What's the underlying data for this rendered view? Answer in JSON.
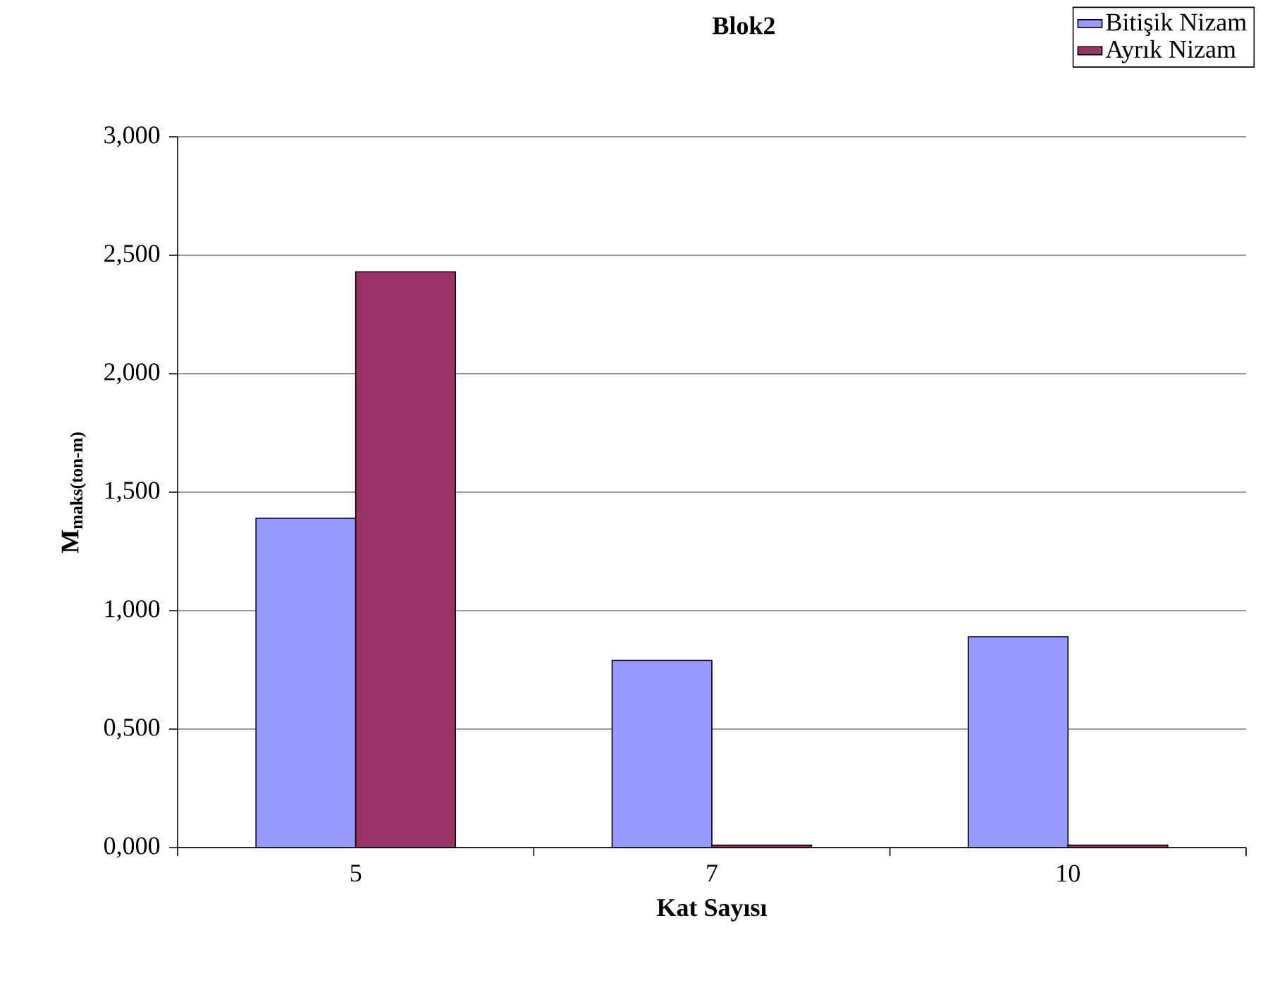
{
  "chart_data": {
    "type": "bar",
    "title": "Blok2",
    "xlabel": "Kat Sayısı",
    "ylabel": "M$_{maks(ton-m)}$",
    "categories": [
      "5",
      "7",
      "10"
    ],
    "series": [
      {
        "name": "Bitişik Nizam",
        "color": "#9999ff",
        "values": [
          1.39,
          0.79,
          0.89
        ]
      },
      {
        "name": "Ayrık Nizam",
        "color": "#993366",
        "values": [
          2.43,
          0.01,
          0.01
        ]
      }
    ],
    "ylim": [
      0,
      3
    ],
    "yticks": [
      {
        "value": 0,
        "label": "0,000"
      },
      {
        "value": 0.5,
        "label": "0,500"
      },
      {
        "value": 1,
        "label": "1,000"
      },
      {
        "value": 1.5,
        "label": "1,500"
      },
      {
        "value": 2,
        "label": "2,000"
      },
      {
        "value": 2.5,
        "label": "2,500"
      },
      {
        "value": 3,
        "label": "3,000"
      }
    ],
    "grid": "y",
    "legend": "top right"
  }
}
